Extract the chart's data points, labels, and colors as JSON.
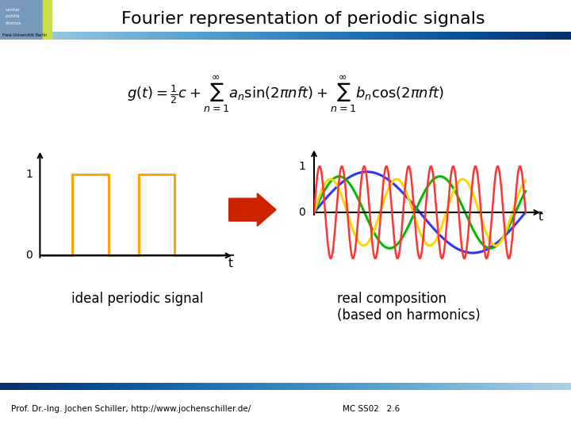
{
  "title": "Fourier representation of periodic signals",
  "title_fontsize": 16,
  "title_color": "#000000",
  "background_color": "#ffffff",
  "header_bar_left_color": "#3344aa",
  "header_bar_right_color": "#aaaacc",
  "footer_bar_left_color": "#3344aa",
  "footer_bar_right_color": "#ffffff",
  "left_plot_label": "ideal periodic signal",
  "right_plot_label": "real composition\n(based on harmonics)",
  "footer_left": "Prof. Dr.-Ing. Jochen Schiller, http://www.jochenschiller.de/",
  "footer_right": "MC SS02   2.6",
  "square_wave_color": "#FFA500",
  "harmonics_colors": [
    "#FF3333",
    "#FFD700",
    "#00BB00",
    "#3333FF"
  ],
  "logo_text_color": "#7799BB",
  "logo_yellow_color": "#CCDD44",
  "logo_bg_color": "#7799BB"
}
